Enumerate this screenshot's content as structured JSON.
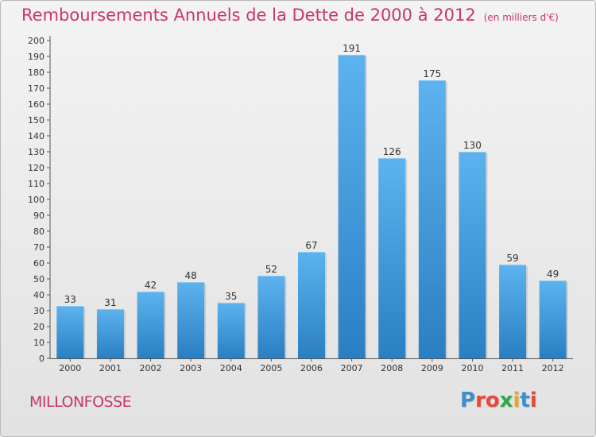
{
  "page": {
    "title": "Remboursements Annuels de la Dette de 2000 à 2012",
    "unit_note": "(en milliers d'€)",
    "commune": "MILLONFOSSE",
    "logo": {
      "text": "Proxiti",
      "letter_colors": [
        "#3a8fd0",
        "#e8483a",
        "#e8483a",
        "#2fa84f",
        "#f2a51c",
        "#3a8fd0",
        "#e8483a"
      ]
    },
    "colors": {
      "bar": "#3d95d9",
      "title": "#c8356e",
      "background_top": "#f3f3f3",
      "background_bottom": "#e2e2e2"
    }
  },
  "chart_data": {
    "type": "bar",
    "title": "Remboursements Annuels de la Dette de 2000 à 2012",
    "subtitle": "(en milliers d'€)",
    "xlabel": "",
    "ylabel": "",
    "categories": [
      "2000",
      "2001",
      "2002",
      "2003",
      "2004",
      "2005",
      "2006",
      "2007",
      "2008",
      "2009",
      "2010",
      "2011",
      "2012"
    ],
    "values": [
      33,
      31,
      42,
      48,
      35,
      52,
      67,
      191,
      126,
      175,
      130,
      59,
      49
    ],
    "ylim": [
      0,
      200
    ],
    "ytick_step": 10,
    "grid": false,
    "legend": "none"
  }
}
